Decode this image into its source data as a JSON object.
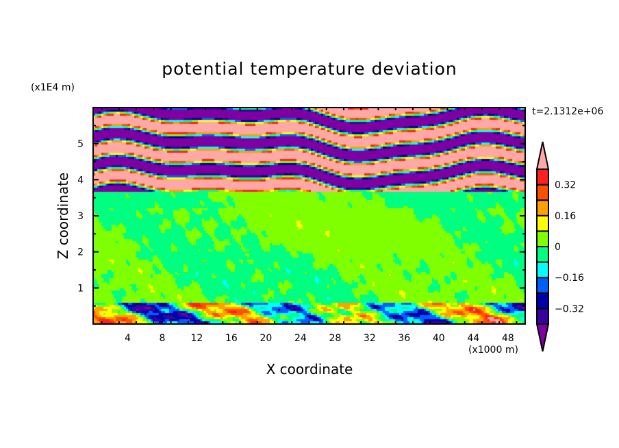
{
  "chart_data": {
    "type": "heatmap",
    "subtype": "filled-contour",
    "title": "potential temperature deviation",
    "xlabel": "X coordinate",
    "ylabel": "Z coordinate",
    "x_unit": "(x1000 m)",
    "y_unit": "(x1E4 m)",
    "time_label": "t=2.1312e+06",
    "xlim": [
      0,
      50
    ],
    "ylim": [
      0,
      6
    ],
    "x_ticks": [
      4,
      8,
      12,
      16,
      20,
      24,
      28,
      32,
      36,
      40,
      44,
      48
    ],
    "y_ticks": [
      1,
      2,
      3,
      4,
      5
    ],
    "colorbar": {
      "levels": [
        -0.4,
        -0.32,
        -0.24,
        -0.16,
        -0.08,
        0,
        0.08,
        0.16,
        0.24,
        0.32,
        0.4
      ],
      "labels": [
        "0.32",
        "0.16",
        "0",
        "-0.16",
        "-0.32"
      ],
      "label_values": [
        0.32,
        0.16,
        0,
        -0.16,
        -0.32
      ],
      "under_color": "#7f00a0",
      "over_color": "#ffa8a8",
      "colors": [
        "#3a00a0",
        "#0000a8",
        "#0060ff",
        "#00ffff",
        "#00ff80",
        "#80ff00",
        "#ffff00",
        "#ffa000",
        "#ff5000",
        "#ff2020"
      ]
    },
    "regions": [
      {
        "z_range": [
          3.65,
          6
        ],
        "description": "alternating strong positive (>0.4) and negative (<-0.4) layers"
      },
      {
        "z_range": [
          0.6,
          3.65
        ],
        "description": "weak deviations between -0.08 and 0.08"
      },
      {
        "z_range": [
          0,
          0.6
        ],
        "description": "mixed deviations roughly -0.4 to 0.4"
      }
    ]
  }
}
